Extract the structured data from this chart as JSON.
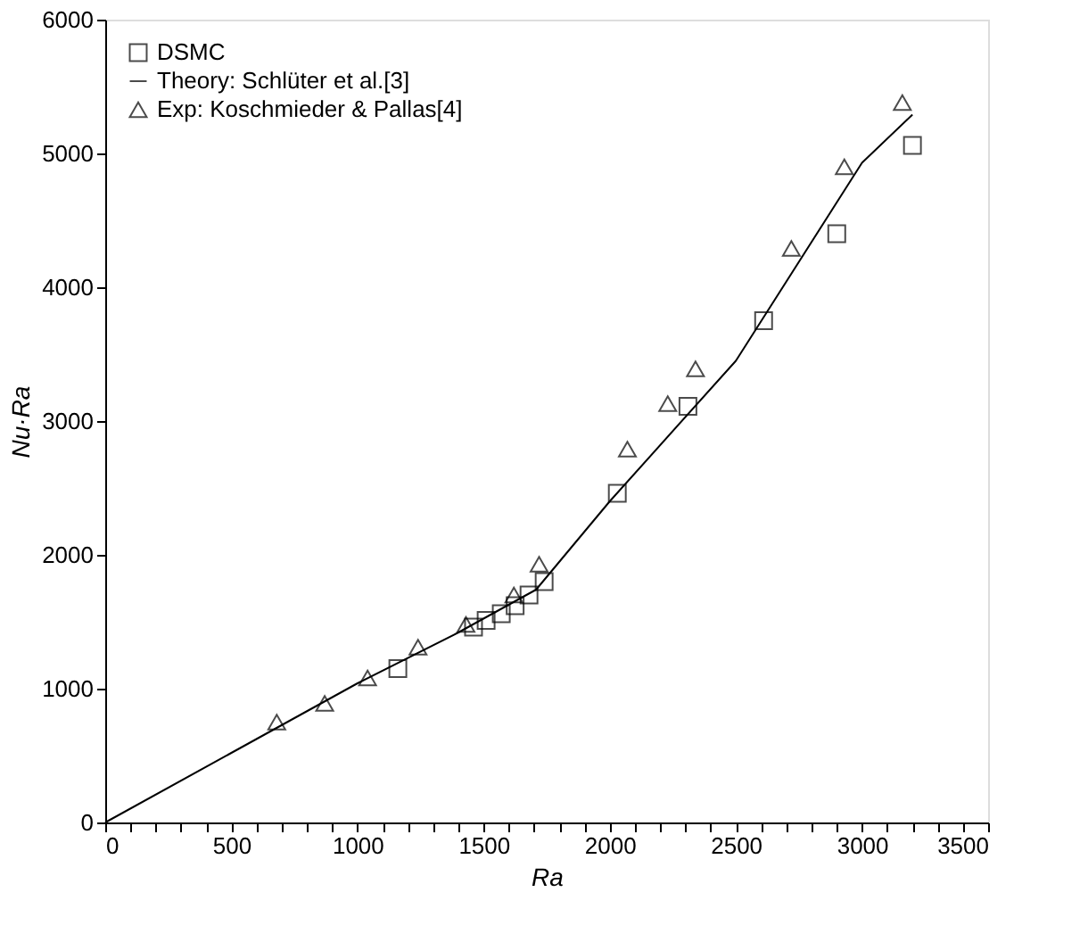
{
  "chart_data": {
    "type": "scatter",
    "xlabel": "Ra",
    "ylabel": "Nu·Ra",
    "xlim": [
      0,
      3500
    ],
    "ylim": [
      0,
      6000
    ],
    "xticks": [
      0,
      {
        "value": 100,
        "label": null
      },
      {
        "value": 200,
        "label": null
      },
      {
        "value": 300,
        "label": null
      },
      {
        "value": 400,
        "label": null
      },
      500,
      {
        "value": 600,
        "label": null
      },
      {
        "value": 700,
        "label": null
      },
      {
        "value": 800,
        "label": null
      },
      {
        "value": 900,
        "label": null
      },
      1000,
      {
        "value": 1100,
        "label": null
      },
      {
        "value": 1200,
        "label": null
      },
      {
        "value": 1300,
        "label": null
      },
      {
        "value": 1400,
        "label": null
      },
      1500,
      {
        "value": 1600,
        "label": null
      },
      {
        "value": 1700,
        "label": null
      },
      {
        "value": 1800,
        "label": null
      },
      {
        "value": 1900,
        "label": null
      },
      2000,
      {
        "value": 2100,
        "label": null
      },
      {
        "value": 2200,
        "label": null
      },
      {
        "value": 2300,
        "label": null
      },
      {
        "value": 2400,
        "label": null
      },
      2500,
      {
        "value": 2600,
        "label": null
      },
      {
        "value": 2700,
        "label": null
      },
      {
        "value": 2800,
        "label": null
      },
      {
        "value": 2900,
        "label": null
      },
      3000,
      {
        "value": 3100,
        "label": null
      },
      {
        "value": 3200,
        "label": null
      },
      {
        "value": 3300,
        "label": null
      },
      {
        "value": 3400,
        "label": null
      },
      3500
    ],
    "yticks": [
      0,
      1000,
      2000,
      3000,
      4000,
      5000,
      6000
    ],
    "grid": false,
    "legend": "top left",
    "series": [
      {
        "name": "DSMC",
        "type": "scatter",
        "marker": "square",
        "color": "#000000",
        "x": [
          1160,
          1460,
          1510,
          1570,
          1625,
          1680,
          1740,
          2030,
          2310,
          2610,
          2900,
          3200
        ],
        "values": [
          1150,
          1460,
          1510,
          1560,
          1620,
          1700,
          1800,
          2460,
          3110,
          3750,
          4400,
          5060
        ]
      },
      {
        "name": "Theory: Schlüter et al.[3]",
        "type": "line",
        "marker": "none",
        "line_style": "solid",
        "color": "#000000",
        "x": [
          0,
          500,
          1000,
          1400,
          1708,
          2000,
          2500,
          3000,
          3200
        ],
        "values": [
          0,
          520,
          1040,
          1420,
          1740,
          2400,
          3450,
          4930,
          5290
        ]
      },
      {
        "name": "Exp: Koschmieder & Pallas[4]",
        "type": "scatter",
        "marker": "triangle",
        "color": "#000000",
        "x": [
          680,
          870,
          1040,
          1240,
          1430,
          1620,
          1720,
          2070,
          2230,
          2340,
          2720,
          2930,
          3160
        ],
        "values": [
          750,
          890,
          1080,
          1310,
          1480,
          1700,
          1930,
          2790,
          3130,
          3390,
          4290,
          4900,
          5380
        ]
      }
    ]
  }
}
